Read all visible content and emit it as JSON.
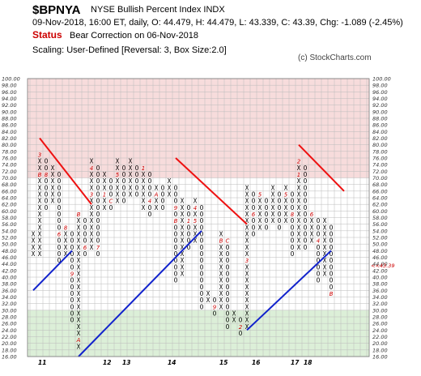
{
  "header": {
    "symbol": "$BPNYA",
    "name": "NYSE Bullish Percent Index  INDX",
    "quote_line": "09-Nov-2018, 16:00 ET, daily, O: 44.479, H: 44.479, L: 43.339, C: 43.39, Chg: -1.089 (-2.45%)",
    "status_label": "Status",
    "status_value": "Bear Correction on 06-Nov-2018",
    "scaling": "Scaling: User-Defined [Reversal: 3, Box Size:2.0]",
    "credit": "(c) StockCharts.com"
  },
  "colors": {
    "upper_zone": "#f7dcdc",
    "lower_zone": "#dcefd8",
    "bear_line": "#ee1111",
    "bull_line": "#1122cc",
    "month_marker": "#cc0000"
  },
  "chart_data": {
    "type": "point-and-figure",
    "box_size": 2,
    "reversal": 3,
    "y_range": [
      16,
      100
    ],
    "y_ticks": [
      "16.00",
      "18.00",
      "20.00",
      "22.00",
      "24.00",
      "26.00",
      "28.00",
      "30.00",
      "32.00",
      "34.00",
      "36.00",
      "38.00",
      "40.00",
      "42.00",
      "44.00",
      "46.00",
      "48.00",
      "50.00",
      "52.00",
      "54.00",
      "56.00",
      "58.00",
      "60.00",
      "62.00",
      "64.00",
      "66.00",
      "68.00",
      "70.00",
      "72.00",
      "74.00",
      "76.00",
      "78.00",
      "80.00",
      "82.00",
      "84.00",
      "86.00",
      "88.00",
      "90.00",
      "92.00",
      "94.00",
      "96.00",
      "98.00",
      "100.00"
    ],
    "zones": [
      {
        "name": "overbought",
        "from": 70,
        "to": 100
      },
      {
        "name": "oversold",
        "from": 16,
        "to": 30
      }
    ],
    "x_labels": [
      {
        "text": "11",
        "col": 1
      },
      {
        "text": "12",
        "col": 11
      },
      {
        "text": "13",
        "col": 14
      },
      {
        "text": "14",
        "col": 21
      },
      {
        "text": "15",
        "col": 29
      },
      {
        "text": "16",
        "col": 34
      },
      {
        "text": "17",
        "col": 40
      },
      {
        "text": "18",
        "col": 42
      }
    ],
    "columns": [
      {
        "t": "X",
        "lo": 48,
        "hi": 56
      },
      {
        "t": "X",
        "lo": 48,
        "hi": 80,
        "m": {
          "78": "3",
          "72": "B"
        }
      },
      {
        "t": "O",
        "lo": 62,
        "hi": 78,
        "m": {
          "72": "8"
        }
      },
      {
        "t": "X",
        "lo": 64,
        "hi": 76
      },
      {
        "t": "O",
        "lo": 46,
        "hi": 74,
        "m": {
          "54": "6"
        }
      },
      {
        "t": "X",
        "lo": 48,
        "hi": 58,
        "m": {
          "56": "8"
        }
      },
      {
        "t": "O",
        "lo": 28,
        "hi": 56,
        "m": {
          "42": "9"
        }
      },
      {
        "t": "X",
        "lo": 20,
        "hi": 62,
        "m": {
          "22": "A",
          "60": "B"
        }
      },
      {
        "t": "O",
        "lo": 48,
        "hi": 60,
        "m": {
          "50": "6"
        }
      },
      {
        "t": "X",
        "lo": 50,
        "hi": 78,
        "m": {
          "66": "3",
          "74": "4"
        }
      },
      {
        "t": "O",
        "lo": 48,
        "hi": 76,
        "m": {
          "50": "7"
        }
      },
      {
        "t": "X",
        "lo": 62,
        "hi": 74,
        "m": {
          "66": "1"
        }
      },
      {
        "t": "O",
        "lo": 62,
        "hi": 72,
        "m": {
          "64": "C"
        }
      },
      {
        "t": "X",
        "lo": 64,
        "hi": 78,
        "m": {
          "72": "5"
        }
      },
      {
        "t": "O",
        "lo": 64,
        "hi": 76
      },
      {
        "t": "X",
        "lo": 66,
        "hi": 78
      },
      {
        "t": "O",
        "lo": 66,
        "hi": 76
      },
      {
        "t": "X",
        "lo": 62,
        "hi": 76,
        "m": {
          "74": "1"
        }
      },
      {
        "t": "O",
        "lo": 60,
        "hi": 74,
        "m": {
          "64": "4"
        }
      },
      {
        "t": "X",
        "lo": 62,
        "hi": 70,
        "m": {
          "66": "A"
        }
      },
      {
        "t": "O",
        "lo": 62,
        "hi": 70
      },
      {
        "t": "X",
        "lo": 66,
        "hi": 72,
        "m": {
          "72": "7"
        }
      },
      {
        "t": "O",
        "lo": 40,
        "hi": 70,
        "m": {
          "62": "9",
          "58": "B"
        }
      },
      {
        "t": "X",
        "lo": 42,
        "hi": 66
      },
      {
        "t": "O",
        "lo": 50,
        "hi": 64,
        "m": {
          "58": "1"
        }
      },
      {
        "t": "X",
        "lo": 52,
        "hi": 66,
        "m": {
          "62": "4",
          "58": "5"
        }
      },
      {
        "t": "O",
        "lo": 32,
        "hi": 64
      },
      {
        "t": "X",
        "lo": 34,
        "hi": 38
      },
      {
        "t": "O",
        "lo": 30,
        "hi": 36,
        "m": {
          "32": "9"
        }
      },
      {
        "t": "X",
        "lo": 32,
        "hi": 56,
        "m": {
          "52": "B"
        }
      },
      {
        "t": "O",
        "lo": 26,
        "hi": 54,
        "m": {
          "52": "C"
        }
      },
      {
        "t": "X",
        "lo": 28,
        "hi": 32
      },
      {
        "t": "O",
        "lo": 24,
        "hi": 30,
        "m": {
          "26": "2"
        }
      },
      {
        "t": "X",
        "lo": 26,
        "hi": 70,
        "m": {
          "46": "3"
        }
      },
      {
        "t": "O",
        "lo": 54,
        "hi": 68,
        "m": {
          "60": "6"
        }
      },
      {
        "t": "X",
        "lo": 56,
        "hi": 68,
        "m": {
          "66": "5"
        }
      },
      {
        "t": "O",
        "lo": 56,
        "hi": 66
      },
      {
        "t": "X",
        "lo": 58,
        "hi": 70,
        "m": {
          "70": "8"
        }
      },
      {
        "t": "O",
        "lo": 56,
        "hi": 68
      },
      {
        "t": "X",
        "lo": 58,
        "hi": 70,
        "m": {
          "66": "5"
        }
      },
      {
        "t": "O",
        "lo": 48,
        "hi": 68,
        "m": {
          "60": "8"
        }
      },
      {
        "t": "X",
        "lo": 50,
        "hi": 78,
        "m": {
          "76": "2",
          "72": "1"
        }
      },
      {
        "t": "O",
        "lo": 50,
        "hi": 76
      },
      {
        "t": "X",
        "lo": 52,
        "hi": 62,
        "m": {
          "60": "6"
        }
      },
      {
        "t": "O",
        "lo": 40,
        "hi": 60,
        "m": {
          "52": "4"
        }
      },
      {
        "t": "X",
        "lo": 42,
        "hi": 60,
        "m": {
          "60": "A"
        }
      },
      {
        "t": "O",
        "lo": 36,
        "hi": 58,
        "m": {
          "36": "B"
        }
      }
    ],
    "last_price": "43.39",
    "trend_lines": [
      {
        "type": "bear",
        "points": [
          [
            1,
            82
          ],
          [
            9,
            62
          ]
        ]
      },
      {
        "type": "bull",
        "points": [
          [
            0,
            36
          ],
          [
            6,
            48
          ]
        ]
      },
      {
        "type": "bull",
        "points": [
          [
            7,
            16
          ],
          [
            26,
            54
          ]
        ]
      },
      {
        "type": "bear",
        "points": [
          [
            22,
            76
          ],
          [
            33,
            56
          ]
        ]
      },
      {
        "type": "bear",
        "points": [
          [
            41,
            80
          ],
          [
            48,
            66
          ]
        ]
      },
      {
        "type": "bull",
        "points": [
          [
            33,
            24
          ],
          [
            46,
            48
          ]
        ]
      }
    ]
  }
}
